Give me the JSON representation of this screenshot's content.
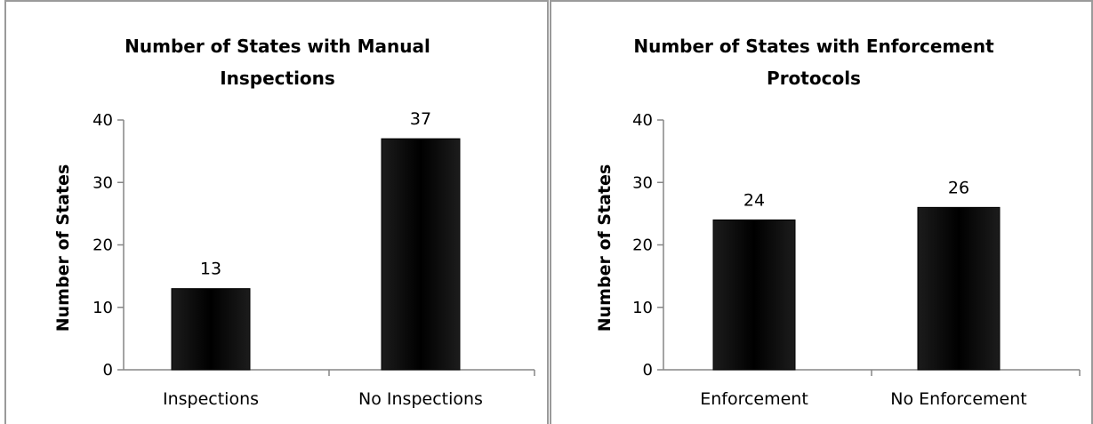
{
  "chart_data": [
    {
      "type": "bar",
      "title": "Number of States with Manual Inspections",
      "title_lines": [
        "Number of States with Manual",
        "Inspections"
      ],
      "ylabel": "Number of States",
      "xlabel": "",
      "categories": [
        "Inspections",
        "No Inspections"
      ],
      "values": [
        13,
        37
      ],
      "data_labels": [
        "13",
        "37"
      ],
      "ylim": [
        0,
        40
      ],
      "yticks": [
        "0",
        "10",
        "20",
        "30",
        "40"
      ],
      "grid": false,
      "bar_color": "#000000"
    },
    {
      "type": "bar",
      "title": "Number of States with Enforcement Protocols",
      "title_lines": [
        "Number of States with Enforcement",
        "Protocols"
      ],
      "ylabel": "Number of States",
      "xlabel": "",
      "categories": [
        "Enforcement",
        "No Enforcement"
      ],
      "values": [
        24,
        26
      ],
      "data_labels": [
        "24",
        "26"
      ],
      "ylim": [
        0,
        40
      ],
      "yticks": [
        "0",
        "10",
        "20",
        "30",
        "40"
      ],
      "grid": false,
      "bar_color": "#000000"
    }
  ]
}
